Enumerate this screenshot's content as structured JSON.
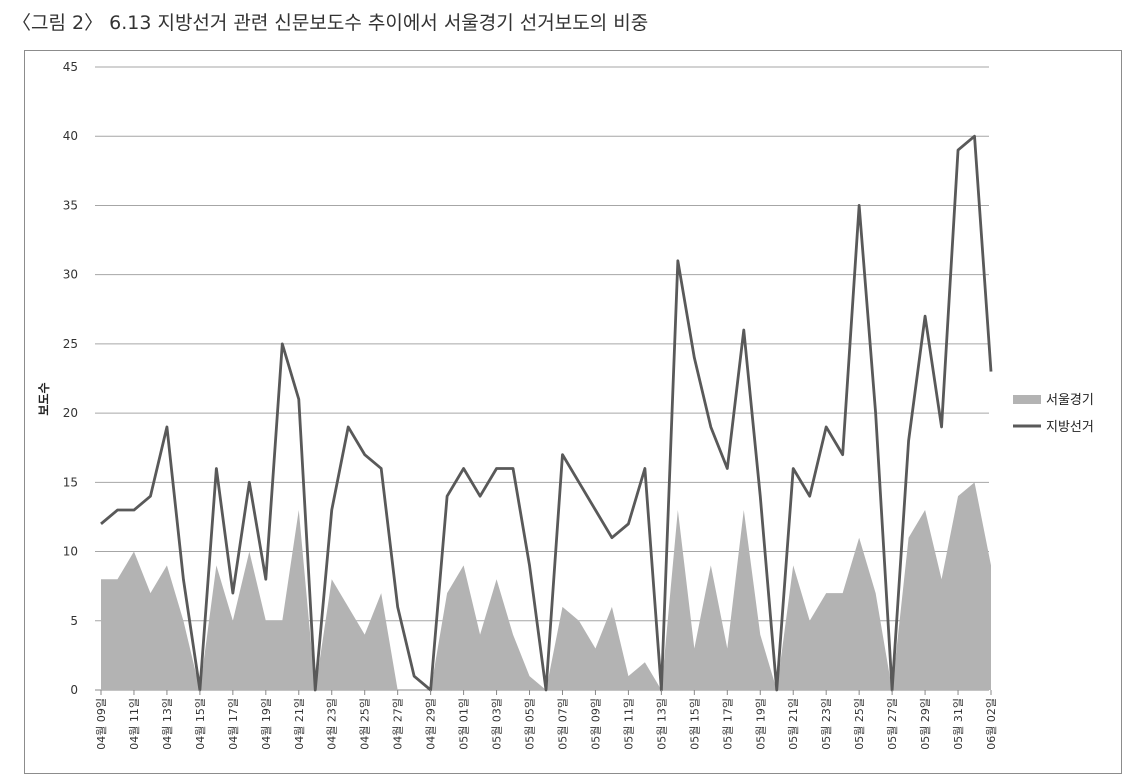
{
  "figure": {
    "title": "〈그림 2〉 6.13 지방선거 관련 신문보도수 추이에서 서울경기 선거보도의 비중"
  },
  "chart_data": {
    "type": "area+line",
    "ylabel": "보도수",
    "ylim": [
      0,
      45
    ],
    "yticks": [
      0,
      5,
      10,
      15,
      20,
      25,
      30,
      35,
      40,
      45
    ],
    "grid": true,
    "legend_position": "right",
    "x": [
      "04월 09일",
      "04월 10일",
      "04월 11일",
      "04월 12일",
      "04월 13일",
      "04월 14일",
      "04월 15일",
      "04월 16일",
      "04월 17일",
      "04월 18일",
      "04월 19일",
      "04월 20일",
      "04월 21일",
      "04월 22일",
      "04월 23일",
      "04월 24일",
      "04월 25일",
      "04월 26일",
      "04월 27일",
      "04월 28일",
      "04월 29일",
      "04월 30일",
      "05월 01일",
      "05월 02일",
      "05월 03일",
      "05월 04일",
      "05월 05일",
      "05월 06일",
      "05월 07일",
      "05월 08일",
      "05월 09일",
      "05월 10일",
      "05월 11일",
      "05월 12일",
      "05월 13일",
      "05월 14일",
      "05월 15일",
      "05월 16일",
      "05월 17일",
      "05월 18일",
      "05월 19일",
      "05월 20일",
      "05월 21일",
      "05월 22일",
      "05월 23일",
      "05월 24일",
      "05월 25일",
      "05월 26일",
      "05월 27일",
      "05월 28일",
      "05월 29일",
      "05월 30일",
      "05월 31일",
      "06월 01일",
      "06월 02일"
    ],
    "x_tick_labels": [
      "04월 09일",
      "04월 11일",
      "04월 13일",
      "04월 15일",
      "04월 17일",
      "04월 19일",
      "04월 21일",
      "04월 23일",
      "04월 25일",
      "04월 27일",
      "04월 29일",
      "05월 01일",
      "05월 03일",
      "05월 05일",
      "05월 07일",
      "05월 09일",
      "05월 11일",
      "05월 13일",
      "05월 15일",
      "05월 17일",
      "05월 19일",
      "05월 21일",
      "05월 23일",
      "05월 25일",
      "05월 27일",
      "05월 29일",
      "05월 31일",
      "06월 02일"
    ],
    "series": [
      {
        "name": "서울경기",
        "kind": "area",
        "color": "#b3b3b3",
        "values": [
          8,
          8,
          10,
          7,
          9,
          5,
          0,
          9,
          5,
          10,
          5,
          5,
          13,
          0,
          8,
          6,
          4,
          7,
          0,
          0,
          0,
          7,
          9,
          4,
          8,
          4,
          1,
          0,
          6,
          5,
          3,
          6,
          1,
          2,
          0,
          13,
          3,
          9,
          3,
          13,
          4,
          0,
          9,
          5,
          7,
          7,
          11,
          7,
          0,
          11,
          13,
          8,
          14,
          15,
          9
        ]
      },
      {
        "name": "지방선거",
        "kind": "line",
        "color": "#595959",
        "values": [
          12,
          13,
          13,
          14,
          19,
          8,
          0,
          16,
          7,
          15,
          8,
          25,
          21,
          0,
          13,
          19,
          17,
          16,
          6,
          1,
          0,
          14,
          16,
          14,
          16,
          16,
          9,
          0,
          17,
          15,
          13,
          11,
          12,
          16,
          0,
          31,
          24,
          19,
          16,
          26,
          14,
          0,
          16,
          14,
          19,
          17,
          35,
          20,
          0,
          18,
          27,
          19,
          39,
          40,
          23
        ]
      }
    ]
  }
}
